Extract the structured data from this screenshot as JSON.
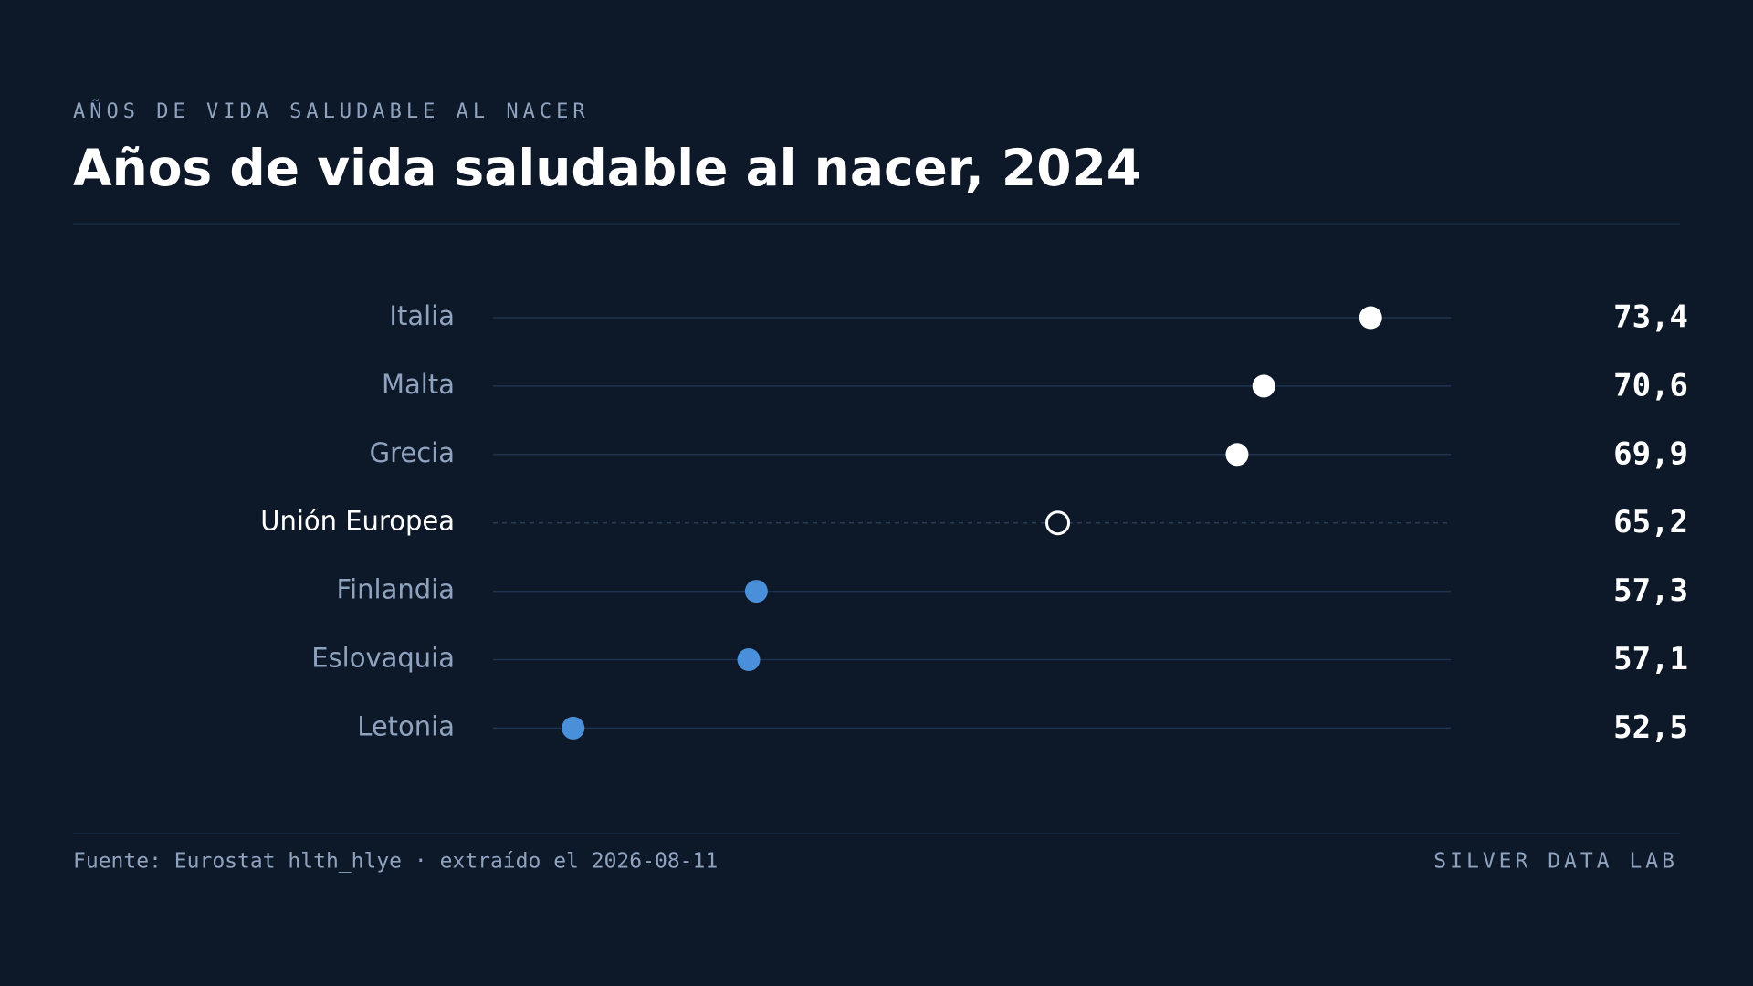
{
  "chart_data": {
    "type": "dot",
    "kicker": "AÑOS DE VIDA SALUDABLE AL NACER",
    "title": "Años de vida saludable al nacer, 2024",
    "categories": [
      "Italia",
      "Malta",
      "Grecia",
      "Unión Europea",
      "Finlandia",
      "Eslovaquia",
      "Letonia"
    ],
    "values": [
      73.4,
      70.6,
      69.9,
      65.2,
      57.3,
      57.1,
      52.5
    ],
    "value_labels": [
      "73,4",
      "70,6",
      "69,9",
      "65,2",
      "57,3",
      "57,1",
      "52,5"
    ],
    "colors": [
      "#ffffff",
      "#ffffff",
      "#ffffff",
      "#ffffff",
      "#4a8fd9",
      "#4a8fd9",
      "#4a8fd9"
    ],
    "markers": [
      "filled",
      "filled",
      "filled",
      "hollow",
      "filled",
      "filled",
      "filled"
    ],
    "xlim": [
      50.4,
      75.5
    ],
    "source": "Fuente: Eurostat hlth_hlye · extraído el 2026-08-11",
    "brand": "SILVER DATA LAB"
  }
}
